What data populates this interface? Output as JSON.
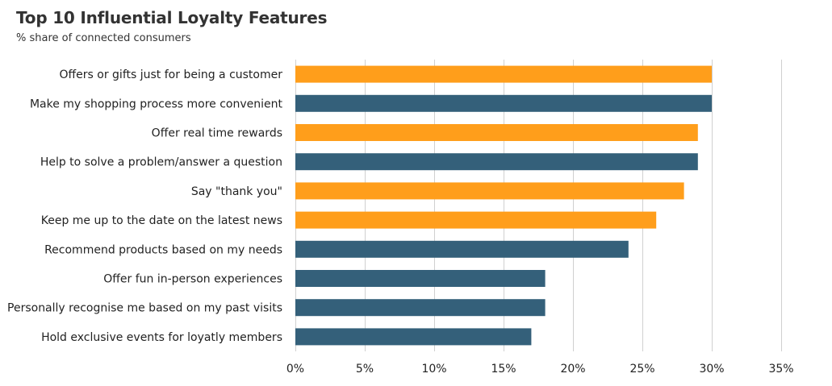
{
  "chart_data": {
    "type": "bar",
    "orientation": "horizontal",
    "title": "Top 10 Influential Loyalty Features",
    "subtitle": "% share of connected consumers",
    "xlabel": "",
    "ylabel": "",
    "xlim": [
      0,
      35
    ],
    "tick_values": [
      0,
      5,
      10,
      15,
      20,
      25,
      30,
      35
    ],
    "tick_labels": [
      "0%",
      "5%",
      "10%",
      "15%",
      "20%",
      "25%",
      "30%",
      "35%"
    ],
    "grid": true,
    "legend": "none",
    "categories": [
      "Offers or gifts just for being a customer",
      "Make my shopping process more convenient",
      "Offer real time rewards",
      "Help to solve a problem/answer a question",
      "Say \"thank you\"",
      "Keep me up to the date on the latest news",
      "Recommend products based on my needs",
      "Offer fun in-person experiences",
      "Personally recognise me based on my past visits",
      "Hold exclusive events for loyatly members"
    ],
    "values": [
      30,
      30,
      29,
      29,
      28,
      26,
      24,
      18,
      18,
      17
    ],
    "bar_colors": [
      "#FF9E1B",
      "#34607A",
      "#FF9E1B",
      "#34607A",
      "#FF9E1B",
      "#FF9E1B",
      "#34607A",
      "#34607A",
      "#34607A",
      "#34607A"
    ]
  },
  "colors": {
    "orange": "#FF9E1B",
    "blue": "#34607A",
    "grid": "#d0d0d0",
    "text": "#222222"
  }
}
